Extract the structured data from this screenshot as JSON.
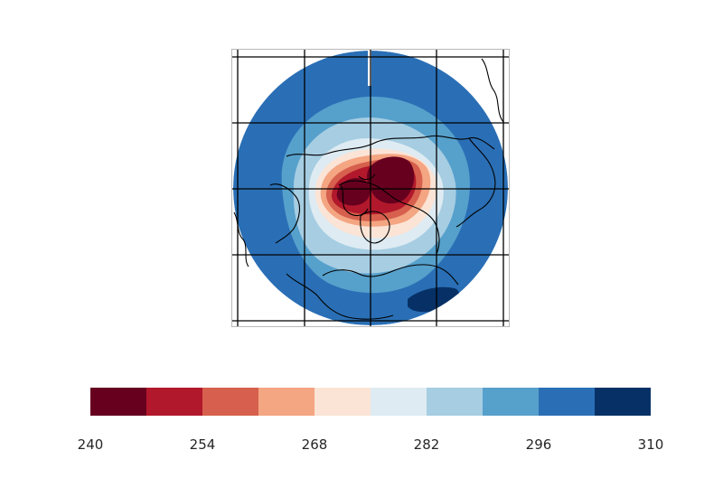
{
  "map": {
    "projection": "north-polar-stereographic",
    "field_colors": {
      "darkest_red": "#67001f",
      "red": "#b2182b",
      "salmon": "#d6604d",
      "peach": "#f4a582",
      "cream": "#fbe4d6",
      "pale_blue": "#deebf2",
      "light_blue": "#a6cde2",
      "mid_blue": "#56a0cc",
      "blue": "#2a6fb5",
      "navy": "#073166"
    },
    "grid_color": "#000000",
    "coastline_color": "#000000"
  },
  "colorbar": {
    "colors": [
      "#67001f",
      "#b2182b",
      "#d6604d",
      "#f4a582",
      "#fbe4d6",
      "#deebf2",
      "#a6cde2",
      "#56a0cc",
      "#2a6fb5",
      "#073166"
    ],
    "ticks": [
      "240",
      "254",
      "268",
      "282",
      "296",
      "310"
    ]
  }
}
